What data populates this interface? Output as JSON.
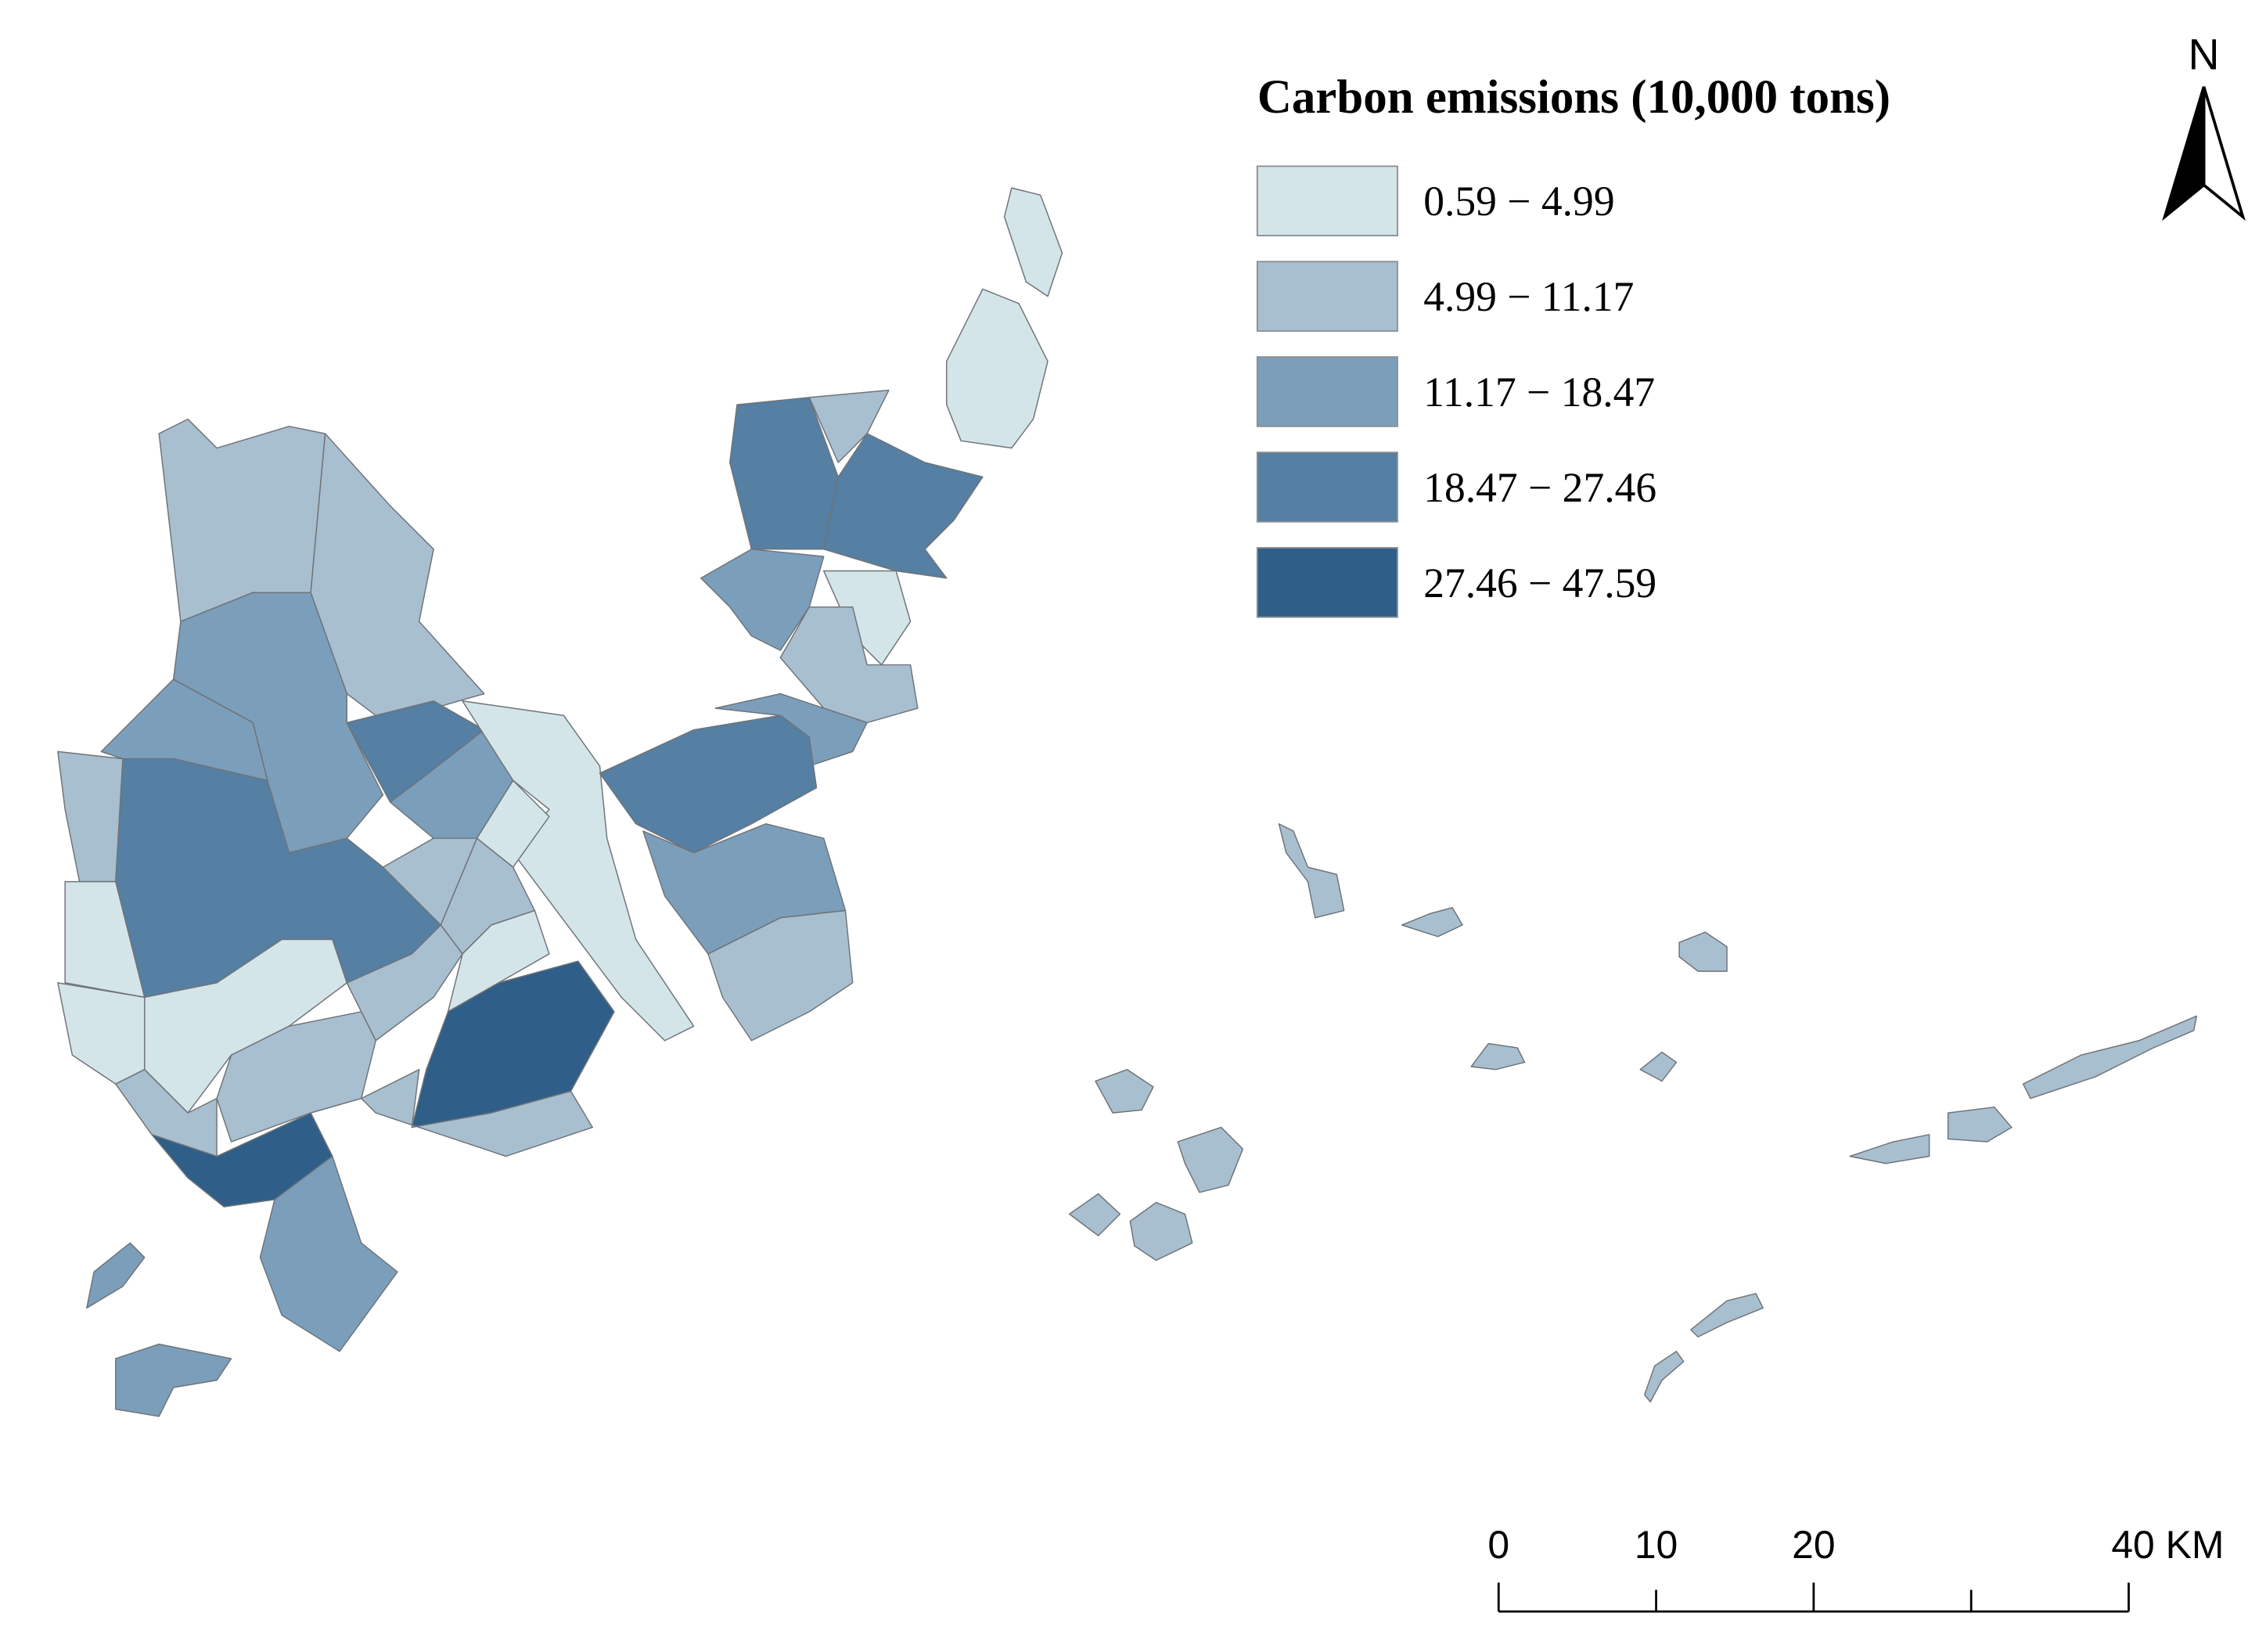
{
  "legend": {
    "title": "Carbon emissions (10,000 tons)",
    "items": [
      {
        "label": "0.59 − 4.99",
        "color": "#d4e5ea"
      },
      {
        "label": "4.99 − 11.17",
        "color": "#a8bfd0"
      },
      {
        "label": "11.17 − 18.47",
        "color": "#7b9ebb"
      },
      {
        "label": "18.47 − 27.46",
        "color": "#557fa3"
      },
      {
        "label": "27.46 − 47.59",
        "color": "#2f5f88"
      }
    ]
  },
  "north_arrow": {
    "label": "N"
  },
  "scale_bar": {
    "labels": [
      "0",
      "10",
      "20",
      "40 KM"
    ]
  }
}
